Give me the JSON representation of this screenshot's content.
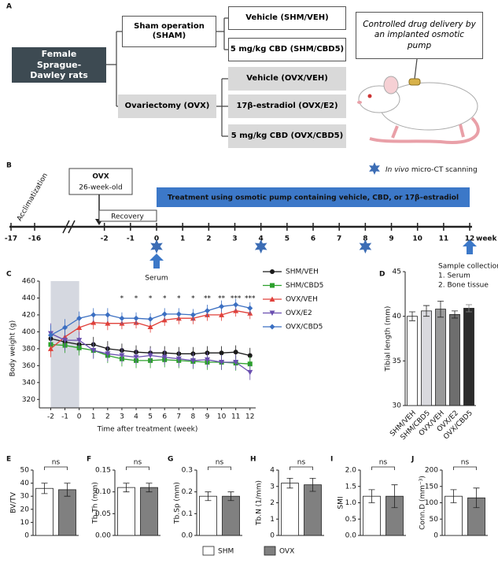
{
  "panel_labels": [
    "A",
    "B",
    "C",
    "D",
    "E",
    "F",
    "G",
    "H",
    "I",
    "J"
  ],
  "panel_a": {
    "source": "Female Sprague-Dawley rats",
    "branches": [
      {
        "label": "Sham operation (SHAM)",
        "groups": [
          "Vehicle (SHM/VEH)",
          "5 mg/kg CBD (SHM/CBD5)"
        ]
      },
      {
        "label": "Ovariectomy (OVX)",
        "groups": [
          "Vehicle (OVX/VEH)",
          "17β-estradiol (OVX/E2)",
          "5 mg/kg CBD (OVX/CBD5)"
        ]
      }
    ],
    "callout": "Controlled drug delivery by an implanted osmotic pump"
  },
  "panel_b": {
    "ticks": [
      -17,
      -16,
      -2,
      -1,
      0,
      1,
      2,
      3,
      4,
      5,
      6,
      7,
      8,
      9,
      10,
      11,
      12
    ],
    "unit": "week",
    "acclimatization": "Acclimatization",
    "ovx": "OVX",
    "ovx_age": "26-week-old",
    "recovery": "Recovery",
    "treatment": "Treatment using osmotic pump containing vehicle, CBD, or 17β–estradiol",
    "ct_legend": {
      "italic": "In vivo",
      "text": "micro-CT scanning"
    },
    "ct_weeks": [
      0,
      4,
      8
    ],
    "serum": "Serum",
    "sample": {
      "title": "Sample collection",
      "items": [
        "1. Serum",
        "2. Bone tissue"
      ]
    }
  },
  "chart_data": [
    {
      "type": "line",
      "x_label": "Time after treatment (week)",
      "y_label": "Body weight (g)",
      "x": [
        -2,
        -1,
        0,
        1,
        2,
        3,
        4,
        5,
        6,
        7,
        8,
        9,
        10,
        11,
        12
      ],
      "xlim": [
        -2.8,
        12.4
      ],
      "xticks": [
        -2,
        -1,
        0,
        1,
        2,
        3,
        4,
        5,
        6,
        7,
        8,
        9,
        10,
        11,
        12
      ],
      "ylim": [
        310,
        460
      ],
      "yticks": [
        320,
        340,
        360,
        380,
        400,
        420,
        440,
        460
      ],
      "shade": [
        -2,
        0
      ],
      "series": [
        {
          "name": "SHM/VEH",
          "color": "#1a1a1a",
          "marker": "circle",
          "values": [
            392,
            388,
            385,
            385,
            380,
            378,
            376,
            375,
            375,
            374,
            374,
            375,
            375,
            376,
            372
          ],
          "errors": [
            10,
            10,
            9,
            9,
            9,
            8,
            8,
            8,
            8,
            8,
            8,
            8,
            8,
            8,
            9
          ]
        },
        {
          "name": "SHM/CBD5",
          "color": "#2ca02c",
          "marker": "square",
          "values": [
            385,
            384,
            381,
            378,
            372,
            368,
            366,
            366,
            367,
            366,
            365,
            364,
            364,
            363,
            362
          ],
          "errors": [
            9,
            9,
            9,
            9,
            9,
            9,
            9,
            9,
            9,
            9,
            9,
            9,
            9,
            9,
            9
          ]
        },
        {
          "name": "OVX/VEH",
          "color": "#e0403a",
          "marker": "triangle-up",
          "values": [
            380,
            394,
            405,
            411,
            410,
            410,
            411,
            406,
            414,
            416,
            416,
            420,
            420,
            425,
            422
          ],
          "errors": [
            10,
            10,
            9,
            8,
            8,
            7,
            7,
            7,
            7,
            7,
            7,
            7,
            7,
            7,
            7
          ]
        },
        {
          "name": "OVX/E2",
          "color": "#6a4fb0",
          "marker": "triangle-down",
          "values": [
            398,
            390,
            390,
            378,
            374,
            372,
            370,
            372,
            370,
            368,
            366,
            367,
            364,
            364,
            352
          ],
          "errors": [
            12,
            12,
            10,
            10,
            9,
            9,
            9,
            9,
            9,
            9,
            9,
            9,
            9,
            9,
            9
          ]
        },
        {
          "name": "OVX/CBD5",
          "color": "#3b6fc2",
          "marker": "diamond",
          "values": [
            396,
            405,
            416,
            420,
            420,
            416,
            416,
            415,
            421,
            421,
            420,
            425,
            430,
            432,
            428
          ],
          "errors": [
            12,
            10,
            8,
            8,
            8,
            7,
            7,
            7,
            7,
            7,
            7,
            7,
            7,
            7,
            7
          ]
        }
      ],
      "annotations": [
        {
          "x": 3,
          "label": "*"
        },
        {
          "x": 4,
          "label": "*"
        },
        {
          "x": 5,
          "label": "*"
        },
        {
          "x": 6,
          "label": "*"
        },
        {
          "x": 7,
          "label": "*"
        },
        {
          "x": 8,
          "label": "*"
        },
        {
          "x": 9,
          "label": "**"
        },
        {
          "x": 10,
          "label": "**"
        },
        {
          "x": 11,
          "label": "***"
        },
        {
          "x": 12,
          "label": "***"
        }
      ]
    },
    {
      "type": "bar",
      "y_label": "Tibial length (mm)",
      "categories": [
        "SHM/VEH",
        "SHM/CBD5",
        "OVX/VEH",
        "OVX/E2",
        "OVX/CBD5"
      ],
      "values": [
        40.0,
        40.6,
        40.8,
        40.2,
        40.9
      ],
      "errors": [
        0.5,
        0.6,
        0.9,
        0.4,
        0.4
      ],
      "colors": [
        "#ffffff",
        "#d9d9de",
        "#9a9a9a",
        "#6e6e6e",
        "#2b2b2b"
      ],
      "ylim": [
        30,
        45
      ],
      "yticks": [
        30,
        35,
        40,
        45
      ]
    },
    {
      "type": "bar",
      "y_label": "BV/TV",
      "categories": [
        null,
        null
      ],
      "values": [
        36,
        35
      ],
      "errors": [
        4,
        5
      ],
      "colors": [
        "#ffffff",
        "#808080"
      ],
      "ylim": [
        0,
        50
      ],
      "yticks": [
        0,
        10,
        20,
        30,
        40,
        50
      ],
      "annotation": "ns"
    },
    {
      "type": "bar",
      "y_label": "Tb.Th (mm)",
      "categories": [
        null,
        null
      ],
      "values": [
        0.11,
        0.11
      ],
      "errors": [
        0.01,
        0.01
      ],
      "colors": [
        "#ffffff",
        "#808080"
      ],
      "ylim": [
        0,
        0.15
      ],
      "yticks": [
        {
          "value": 0,
          "label": "0.00"
        },
        {
          "value": 0.05,
          "label": "0.05"
        },
        {
          "value": 0.1,
          "label": "0.10"
        },
        {
          "value": 0.15,
          "label": "0.15"
        }
      ],
      "annotation": "ns"
    },
    {
      "type": "bar",
      "y_label": "Tb.Sp (mm)",
      "categories": [
        null,
        null
      ],
      "values": [
        0.18,
        0.18
      ],
      "errors": [
        0.02,
        0.02
      ],
      "colors": [
        "#ffffff",
        "#808080"
      ],
      "ylim": [
        0,
        0.3
      ],
      "yticks": [
        {
          "value": 0,
          "label": "0.0"
        },
        0.1,
        0.2,
        0.3
      ],
      "annotation": "ns"
    },
    {
      "type": "bar",
      "y_label": "Tb.N (1/mm)",
      "categories": [
        null,
        null
      ],
      "values": [
        3.2,
        3.1
      ],
      "errors": [
        0.3,
        0.4
      ],
      "colors": [
        "#ffffff",
        "#808080"
      ],
      "ylim": [
        0,
        4
      ],
      "yticks": [
        0,
        1,
        2,
        3,
        4
      ],
      "annotation": "ns"
    },
    {
      "type": "bar",
      "y_label": "SMI",
      "categories": [
        null,
        null
      ],
      "values": [
        1.2,
        1.2
      ],
      "errors": [
        0.2,
        0.35
      ],
      "colors": [
        "#ffffff",
        "#808080"
      ],
      "ylim": [
        0,
        2
      ],
      "yticks": [
        {
          "value": 0,
          "label": "0.0"
        },
        0.5,
        {
          "value": 1,
          "label": "1.0"
        },
        1.5,
        {
          "value": 2,
          "label": "2.0"
        }
      ],
      "annotation": "ns"
    },
    {
      "type": "bar",
      "y_label": "Conn.D (mm⁻³)",
      "categories": [
        null,
        null
      ],
      "values": [
        120,
        115
      ],
      "errors": [
        20,
        30
      ],
      "colors": [
        "#ffffff",
        "#808080"
      ],
      "ylim": [
        0,
        200
      ],
      "yticks": [
        0,
        50,
        100,
        150,
        200
      ],
      "annotation": "ns"
    }
  ],
  "legend": [
    {
      "name": "SHM",
      "color": "#ffffff"
    },
    {
      "name": "OVX",
      "color": "#808080"
    }
  ]
}
